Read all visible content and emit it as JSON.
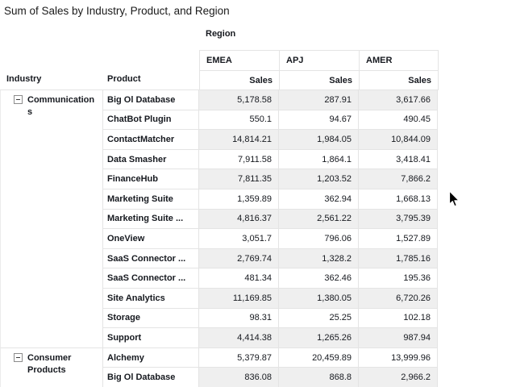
{
  "title": "Sum of Sales by Industry, Product, and Region",
  "columns_field_label": "Region",
  "row_fields": [
    "Industry",
    "Product"
  ],
  "measure_label": "Sales",
  "regions": [
    "EMEA",
    "APJ",
    "AMER"
  ],
  "groups": [
    {
      "industry": "Communications",
      "collapse_icon": "minus-box",
      "rows": [
        {
          "product": "Big Ol Database",
          "values": [
            "5,178.58",
            "287.91",
            "3,617.66"
          ]
        },
        {
          "product": "ChatBot Plugin",
          "values": [
            "550.1",
            "94.67",
            "490.45"
          ]
        },
        {
          "product": "ContactMatcher",
          "values": [
            "14,814.21",
            "1,984.05",
            "10,844.09"
          ]
        },
        {
          "product": "Data Smasher",
          "values": [
            "7,911.58",
            "1,864.1",
            "3,418.41"
          ]
        },
        {
          "product": "FinanceHub",
          "values": [
            "7,811.35",
            "1,203.52",
            "7,866.2"
          ]
        },
        {
          "product": "Marketing Suite",
          "values": [
            "1,359.89",
            "362.94",
            "1,668.13"
          ]
        },
        {
          "product": "Marketing Suite ...",
          "values": [
            "4,816.37",
            "2,561.22",
            "3,795.39"
          ]
        },
        {
          "product": "OneView",
          "values": [
            "3,051.7",
            "796.06",
            "1,527.89"
          ]
        },
        {
          "product": "SaaS Connector ...",
          "values": [
            "2,769.74",
            "1,328.2",
            "1,785.16"
          ]
        },
        {
          "product": "SaaS Connector ...",
          "values": [
            "481.34",
            "362.46",
            "195.36"
          ]
        },
        {
          "product": "Site Analytics",
          "values": [
            "11,169.85",
            "1,380.05",
            "6,720.26"
          ]
        },
        {
          "product": "Storage",
          "values": [
            "98.31",
            "25.25",
            "102.18"
          ]
        },
        {
          "product": "Support",
          "values": [
            "4,414.38",
            "1,265.26",
            "987.94"
          ]
        }
      ]
    },
    {
      "industry": "Consumer Products",
      "collapse_icon": "minus-box",
      "rows": [
        {
          "product": "Alchemy",
          "values": [
            "5,379.87",
            "20,459.89",
            "13,999.96"
          ]
        },
        {
          "product": "Big Ol Database",
          "values": [
            "836.08",
            "868.8",
            "2,966.2"
          ]
        }
      ]
    }
  ],
  "colors": {
    "shaded_row": "#efefef",
    "border": "#e4e4e4",
    "text": "#16191f"
  }
}
